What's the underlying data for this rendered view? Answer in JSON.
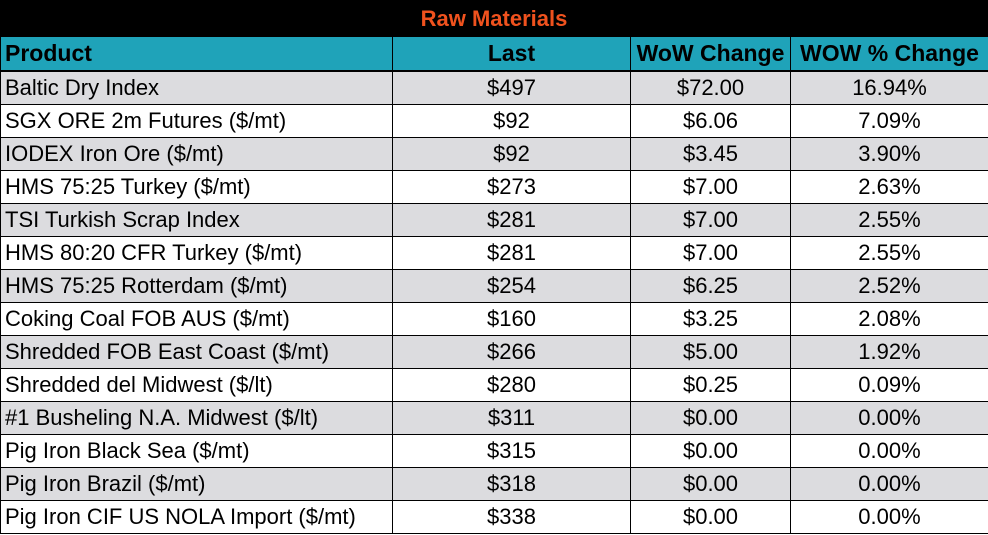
{
  "title": "Raw Materials",
  "colors": {
    "title_background": "#000000",
    "title_text": "#f0521e",
    "header_background": "#1fa3b9",
    "shaded_row": "#dcdcdf"
  },
  "headers": [
    "Product",
    "Last",
    "WoW Change",
    "WOW % Change"
  ],
  "rows": [
    {
      "product": "Baltic Dry Index",
      "last": "$497",
      "wow": "$72.00",
      "pct": "16.94%"
    },
    {
      "product": "SGX ORE 2m Futures ($/mt)",
      "last": "$92",
      "wow": "$6.06",
      "pct": "7.09%"
    },
    {
      "product": "IODEX  Iron Ore ($/mt)",
      "last": "$92",
      "wow": "$3.45",
      "pct": "3.90%"
    },
    {
      "product": "HMS 75:25 Turkey ($/mt)",
      "last": "$273",
      "wow": "$7.00",
      "pct": "2.63%"
    },
    {
      "product": "TSI Turkish Scrap Index",
      "last": "$281",
      "wow": "$7.00",
      "pct": "2.55%"
    },
    {
      "product": "HMS 80:20 CFR Turkey ($/mt)",
      "last": "$281",
      "wow": "$7.00",
      "pct": "2.55%"
    },
    {
      "product": "HMS 75:25 Rotterdam ($/mt)",
      "last": "$254",
      "wow": "$6.25",
      "pct": "2.52%"
    },
    {
      "product": "Coking Coal FOB AUS ($/mt)",
      "last": "$160",
      "wow": "$3.25",
      "pct": "2.08%"
    },
    {
      "product": "Shredded FOB East Coast ($/mt)",
      "last": "$266",
      "wow": "$5.00",
      "pct": "1.92%"
    },
    {
      "product": "Shredded del  Midwest ($/lt)",
      "last": "$280",
      "wow": "$0.25",
      "pct": "0.09%"
    },
    {
      "product": "#1 Busheling N.A. Midwest ($/lt)",
      "last": "$311",
      "wow": "$0.00",
      "pct": "0.00%"
    },
    {
      "product": "Pig Iron Black Sea ($/mt)",
      "last": "$315",
      "wow": "$0.00",
      "pct": "0.00%"
    },
    {
      "product": "Pig Iron Brazil ($/mt)",
      "last": "$318",
      "wow": "$0.00",
      "pct": "0.00%"
    },
    {
      "product": "Pig Iron CIF US NOLA Import ($/mt)",
      "last": "$338",
      "wow": "$0.00",
      "pct": "0.00%"
    }
  ]
}
